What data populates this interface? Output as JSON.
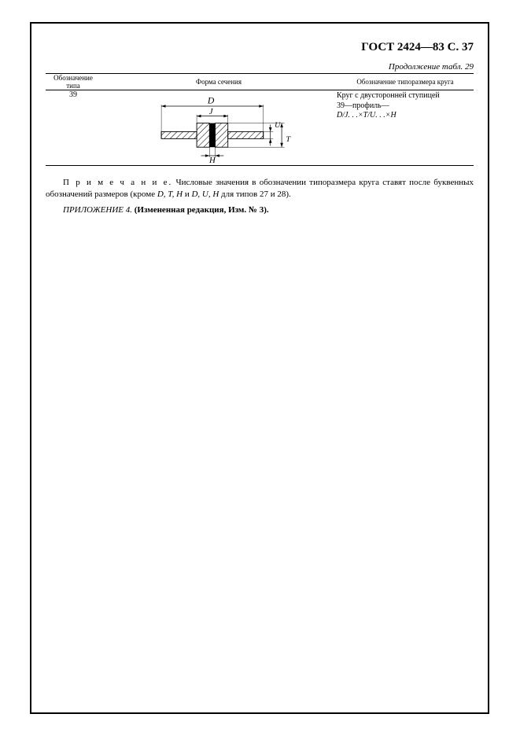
{
  "header": {
    "code": "ГОСТ 2424—83 С. 37"
  },
  "continuation": "Продолжение табл. 29",
  "table": {
    "columns": [
      "Обозначение\nтипа",
      "Форма сечения",
      "Обозначение типоразмера круга"
    ],
    "row": {
      "type": "39",
      "desc": "Круг с двусторонней ступицей\n39—профиль—",
      "formula": "D/J. . .×T/U. . .×H"
    }
  },
  "note_lead": "П р и м е ч а н и е.",
  "note_body": "Числовые значения в обозначении типоразмера круга ставят после буквенных обозначений размеров (кроме",
  "note_italic": "D, T, H",
  "note_mid": " и ",
  "note_italic2": "D, U, H",
  "note_tail": " для типов 27 и 28).",
  "appendix_lead": "ПРИЛОЖЕНИЕ 4.",
  "appendix_body": "(Измененная редакция, Изм. № 3).",
  "diagram": {
    "labels": {
      "D": "D",
      "J": "J",
      "U": "U",
      "T": "T",
      "H": "H"
    },
    "stroke": "#000000",
    "hatch": "#000000",
    "center_fill": "#000000"
  }
}
